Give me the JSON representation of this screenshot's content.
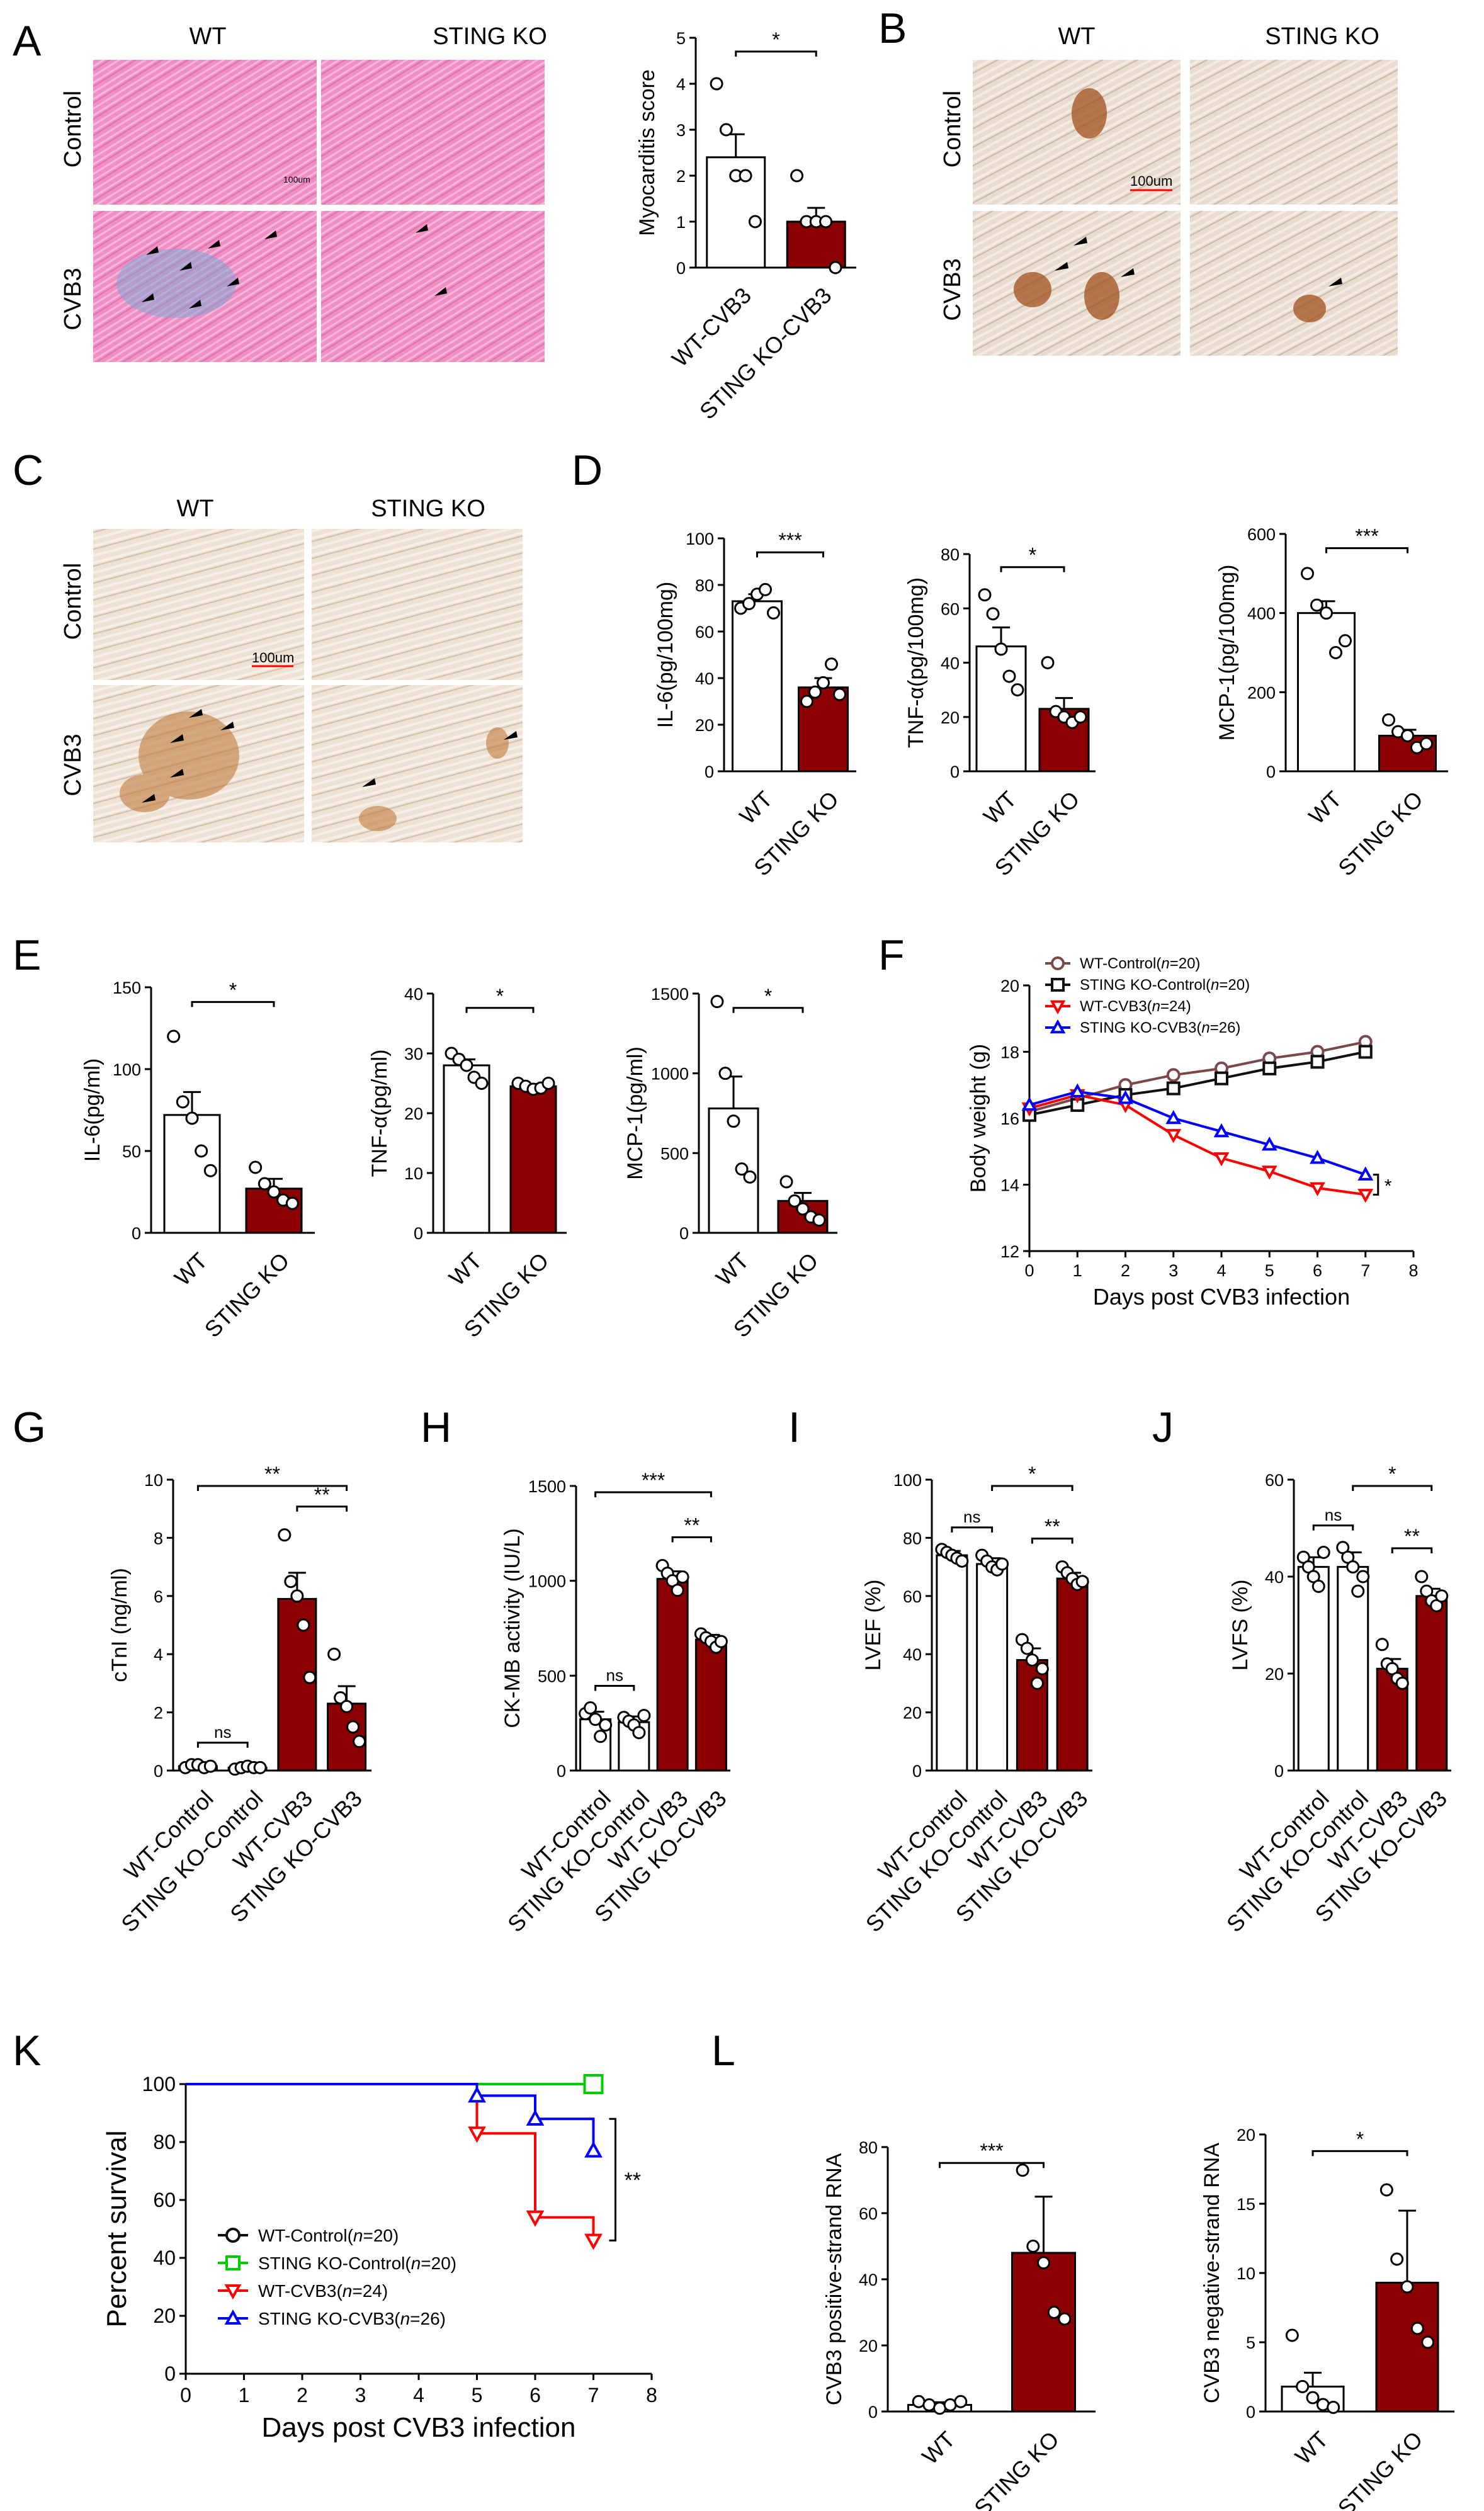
{
  "colors": {
    "ko_bar": "#8b0000",
    "wt_bar": "#ffffff",
    "wt_line": "#7a4a4a",
    "ko_ctrl_line": "#111111",
    "wt_cvb3_line": "#ff0000",
    "ko_cvb3_line": "#0000ff",
    "ko_ctrl_surv": "#00cc00",
    "scale_text": "#ff0000"
  },
  "panel_letters": [
    "A",
    "B",
    "C",
    "D",
    "E",
    "F",
    "G",
    "H",
    "I",
    "J",
    "K",
    "L"
  ],
  "micrographs": {
    "col_wt": "WT",
    "col_ko": "STING KO",
    "row_control": "Control",
    "row_cvb3": "CVB3",
    "scale_bar_label": "100um",
    "scale_bar_label_a": "100um"
  },
  "chart_data": [
    {
      "id": "A",
      "type": "bar",
      "ylabel": "Myocarditis score",
      "categories": [
        "WT-CVB3",
        "STING KO-CVB3"
      ],
      "values": [
        2.4,
        1.0
      ],
      "errors": [
        0.5,
        0.3
      ],
      "points": [
        [
          4,
          3,
          2,
          2,
          1
        ],
        [
          2,
          1,
          1,
          1,
          0
        ]
      ],
      "ylim": [
        0,
        5
      ],
      "yticks": [
        0,
        1,
        2,
        3,
        4,
        5
      ],
      "sig": [
        {
          "a": 0,
          "b": 1,
          "label": "*"
        }
      ]
    },
    {
      "id": "D1",
      "type": "bar",
      "ylabel": "IL-6(pg/100mg)",
      "categories": [
        "WT",
        "STING KO"
      ],
      "values": [
        73,
        36
      ],
      "errors": [
        3,
        4
      ],
      "points": [
        [
          70,
          72,
          76,
          78,
          68
        ],
        [
          30,
          34,
          38,
          46,
          33
        ]
      ],
      "ylim": [
        0,
        100
      ],
      "yticks": [
        0,
        20,
        40,
        60,
        80,
        100
      ],
      "sig": [
        {
          "a": 0,
          "b": 1,
          "label": "***"
        }
      ]
    },
    {
      "id": "D2",
      "type": "bar",
      "ylabel": "TNF-α(pg/100mg)",
      "categories": [
        "WT",
        "STING KO"
      ],
      "values": [
        46,
        23
      ],
      "errors": [
        7,
        4
      ],
      "points": [
        [
          65,
          58,
          45,
          35,
          30
        ],
        [
          40,
          22,
          20,
          18,
          20
        ]
      ],
      "ylim": [
        0,
        80
      ],
      "yticks": [
        0,
        20,
        40,
        60,
        80
      ],
      "sig": [
        {
          "a": 0,
          "b": 1,
          "label": "*"
        }
      ]
    },
    {
      "id": "D3",
      "type": "bar",
      "ylabel": "MCP-1(pg/100mg)",
      "categories": [
        "WT",
        "STING KO"
      ],
      "values": [
        400,
        90
      ],
      "errors": [
        30,
        15
      ],
      "points": [
        [
          500,
          420,
          400,
          300,
          330
        ],
        [
          130,
          100,
          90,
          60,
          70
        ]
      ],
      "ylim": [
        0,
        600
      ],
      "yticks": [
        0,
        200,
        400,
        600
      ],
      "sig": [
        {
          "a": 0,
          "b": 1,
          "label": "***"
        }
      ]
    },
    {
      "id": "E1",
      "type": "bar",
      "ylabel": "IL-6(pg/ml)",
      "categories": [
        "WT",
        "STING KO"
      ],
      "values": [
        72,
        27
      ],
      "errors": [
        14,
        6
      ],
      "points": [
        [
          120,
          80,
          70,
          50,
          38
        ],
        [
          40,
          30,
          25,
          20,
          18
        ]
      ],
      "ylim": [
        0,
        150
      ],
      "yticks": [
        0,
        50,
        100,
        150
      ],
      "sig": [
        {
          "a": 0,
          "b": 1,
          "label": "*"
        }
      ]
    },
    {
      "id": "E2",
      "type": "bar",
      "ylabel": "TNF-α(pg/ml)",
      "categories": [
        "WT",
        "STING KO"
      ],
      "values": [
        28,
        24.5
      ],
      "errors": [
        1,
        0.4
      ],
      "points": [
        [
          30,
          29,
          28,
          26,
          25
        ],
        [
          25,
          24.5,
          24,
          24.2,
          25
        ]
      ],
      "ylim": [
        0,
        40
      ],
      "yticks": [
        0,
        10,
        20,
        30,
        40
      ],
      "sig": [
        {
          "a": 0,
          "b": 1,
          "label": "*"
        }
      ]
    },
    {
      "id": "E3",
      "type": "bar",
      "ylabel": "MCP-1(pg/ml)",
      "categories": [
        "WT",
        "STING KO"
      ],
      "values": [
        780,
        200
      ],
      "errors": [
        200,
        50
      ],
      "points": [
        [
          1450,
          1000,
          700,
          400,
          350
        ],
        [
          320,
          200,
          150,
          100,
          80
        ]
      ],
      "ylim": [
        0,
        1500
      ],
      "yticks": [
        0,
        500,
        1000,
        1500
      ],
      "sig": [
        {
          "a": 0,
          "b": 1,
          "label": "*"
        }
      ]
    },
    {
      "id": "F",
      "type": "line",
      "ylabel": "Body weight (g)",
      "xlabel": "Days post CVB3 infection",
      "xlim": [
        0,
        8
      ],
      "ylim": [
        12,
        20
      ],
      "xticks": [
        0,
        1,
        2,
        3,
        4,
        5,
        6,
        7,
        8
      ],
      "yticks": [
        12,
        14,
        16,
        18,
        20
      ],
      "annotation": "*",
      "series": [
        {
          "name": "WT-Control(",
          "n": "n",
          "count": "=20)",
          "color": "#7a4a4a",
          "marker": "circle",
          "x": [
            0,
            1,
            2,
            3,
            4,
            5,
            6,
            7
          ],
          "y": [
            16.2,
            16.6,
            17.0,
            17.3,
            17.5,
            17.8,
            18.0,
            18.3
          ]
        },
        {
          "name": "STING KO-Control(",
          "n": "n",
          "count": "=20)",
          "color": "#111111",
          "marker": "square",
          "x": [
            0,
            1,
            2,
            3,
            4,
            5,
            6,
            7
          ],
          "y": [
            16.1,
            16.4,
            16.7,
            16.9,
            17.2,
            17.5,
            17.7,
            18.0
          ]
        },
        {
          "name": "WT-CVB3(",
          "n": "n",
          "count": "=24)",
          "color": "#ff0000",
          "marker": "tri-down",
          "x": [
            0,
            1,
            2,
            3,
            4,
            5,
            6,
            7
          ],
          "y": [
            16.3,
            16.7,
            16.4,
            15.5,
            14.8,
            14.4,
            13.9,
            13.7
          ]
        },
        {
          "name": "STING KO-CVB3(",
          "n": "n",
          "count": "=26)",
          "color": "#0000ff",
          "marker": "tri-up",
          "x": [
            0,
            1,
            2,
            3,
            4,
            5,
            6,
            7
          ],
          "y": [
            16.4,
            16.8,
            16.6,
            16.0,
            15.6,
            15.2,
            14.8,
            14.3
          ]
        }
      ]
    },
    {
      "id": "G",
      "type": "bar",
      "ylabel": "cTnI (ng/ml)",
      "categories": [
        "WT-Control",
        "STING KO-Control",
        "WT-CVB3",
        "STING KO-CVB3"
      ],
      "values": [
        0.15,
        0.1,
        5.9,
        2.3
      ],
      "errors": [
        0.05,
        0.05,
        0.9,
        0.6
      ],
      "points": [
        [
          0.1,
          0.2,
          0.2,
          0.1,
          0.15
        ],
        [
          0.05,
          0.1,
          0.15,
          0.1,
          0.1
        ],
        [
          8.1,
          6.5,
          6.0,
          5.0,
          3.2
        ],
        [
          4.0,
          2.5,
          2.2,
          1.5,
          1.0
        ]
      ],
      "ylim": [
        0,
        10
      ],
      "yticks": [
        0,
        2,
        4,
        6,
        8,
        10
      ],
      "ko_from": 2,
      "sig": [
        {
          "a": 0,
          "b": 1,
          "label": "ns",
          "level": 1
        },
        {
          "a": 2,
          "b": 3,
          "label": "**",
          "level": 2
        },
        {
          "a": 0,
          "b": 3,
          "label": "**",
          "level": 3
        }
      ]
    },
    {
      "id": "H",
      "type": "bar",
      "ylabel": "CK-MB activity (IU/L)",
      "categories": [
        "WT-Control",
        "STING KO-Control",
        "WT-CVB3",
        "STING KO-CVB3"
      ],
      "values": [
        270,
        255,
        1010,
        690
      ],
      "errors": [
        40,
        30,
        40,
        25
      ],
      "points": [
        [
          300,
          330,
          270,
          180,
          240
        ],
        [
          280,
          260,
          240,
          200,
          290
        ],
        [
          1080,
          1040,
          1000,
          950,
          1020
        ],
        [
          720,
          700,
          680,
          650,
          680
        ]
      ],
      "ylim": [
        0,
        1500
      ],
      "yticks": [
        0,
        500,
        1000,
        1500
      ],
      "ko_from": 2,
      "sig": [
        {
          "a": 0,
          "b": 1,
          "label": "ns",
          "level": 1
        },
        {
          "a": 2,
          "b": 3,
          "label": "**",
          "level": 2
        },
        {
          "a": 0,
          "b": 3,
          "label": "***",
          "level": 3
        }
      ]
    },
    {
      "id": "I",
      "type": "bar",
      "ylabel": "LVEF (%)",
      "categories": [
        "WT-Control",
        "STING KO-Control",
        "WT-CVB3",
        "STING KO-CVB3"
      ],
      "values": [
        74,
        71,
        38,
        66
      ],
      "errors": [
        1.5,
        2,
        4,
        2
      ],
      "points": [
        [
          76,
          75,
          74,
          73,
          72
        ],
        [
          74,
          72,
          70,
          69,
          71
        ],
        [
          45,
          42,
          38,
          30,
          35
        ],
        [
          70,
          68,
          66,
          64,
          65
        ]
      ],
      "ylim": [
        0,
        100
      ],
      "yticks": [
        0,
        20,
        40,
        60,
        80,
        100
      ],
      "ko_from": 2,
      "sig": [
        {
          "a": 0,
          "b": 1,
          "label": "ns",
          "level": 1
        },
        {
          "a": 2,
          "b": 3,
          "label": "**",
          "level": 2
        },
        {
          "a": 1,
          "b": 3,
          "label": "*",
          "level": 3
        }
      ]
    },
    {
      "id": "J",
      "type": "bar",
      "ylabel": "LVFS (%)",
      "categories": [
        "WT-Control",
        "STING KO-Control",
        "WT-CVB3",
        "STING KO-CVB3"
      ],
      "values": [
        42,
        42,
        21,
        36
      ],
      "errors": [
        2,
        3,
        2,
        1.5
      ],
      "points": [
        [
          44,
          42,
          40,
          38,
          45
        ],
        [
          46,
          44,
          42,
          37,
          40
        ],
        [
          26,
          22,
          21,
          19,
          18
        ],
        [
          40,
          37,
          35,
          34,
          36
        ]
      ],
      "ylim": [
        0,
        60
      ],
      "yticks": [
        0,
        20,
        40,
        60
      ],
      "ko_from": 2,
      "sig": [
        {
          "a": 0,
          "b": 1,
          "label": "ns",
          "level": 1
        },
        {
          "a": 2,
          "b": 3,
          "label": "**",
          "level": 2
        },
        {
          "a": 1,
          "b": 3,
          "label": "*",
          "level": 3
        }
      ]
    },
    {
      "id": "K",
      "type": "survival",
      "ylabel": "Percent survival",
      "xlabel": "Days post CVB3 infection",
      "xlim": [
        0,
        8
      ],
      "ylim": [
        0,
        100
      ],
      "xticks": [
        0,
        1,
        2,
        3,
        4,
        5,
        6,
        7,
        8
      ],
      "yticks": [
        0,
        20,
        40,
        60,
        80,
        100
      ],
      "annotation": "**",
      "series": [
        {
          "name": "WT-Control(",
          "n": "n",
          "count": "=20)",
          "color": "#111111",
          "marker": "circle",
          "steps": [
            [
              0,
              100
            ],
            [
              7,
              100
            ]
          ],
          "marks": [
            [
              7,
              100
            ]
          ]
        },
        {
          "name": "STING KO-Control(",
          "n": "n",
          "count": "=20)",
          "color": "#00cc00",
          "marker": "square",
          "steps": [
            [
              0,
              100
            ],
            [
              7,
              100
            ]
          ],
          "marks": [
            [
              7,
              100
            ]
          ]
        },
        {
          "name": "WT-CVB3(",
          "n": "n",
          "count": "=24)",
          "color": "#ff0000",
          "marker": "tri-down",
          "steps": [
            [
              0,
              100
            ],
            [
              5,
              100
            ],
            [
              5,
              83
            ],
            [
              6,
              83
            ],
            [
              6,
              54
            ],
            [
              7,
              54
            ],
            [
              7,
              46
            ]
          ],
          "marks": [
            [
              5,
              83
            ],
            [
              6,
              54
            ],
            [
              7,
              46
            ]
          ]
        },
        {
          "name": "STING KO-CVB3(",
          "n": "n",
          "count": "=26)",
          "color": "#0000ff",
          "marker": "tri-up",
          "steps": [
            [
              0,
              100
            ],
            [
              5,
              100
            ],
            [
              5,
              96
            ],
            [
              6,
              96
            ],
            [
              6,
              88
            ],
            [
              7,
              88
            ],
            [
              7,
              77
            ]
          ],
          "marks": [
            [
              5,
              96
            ],
            [
              6,
              88
            ],
            [
              7,
              77
            ]
          ]
        }
      ]
    },
    {
      "id": "L1",
      "type": "bar",
      "ylabel": "CVB3 positive-strand RNA",
      "categories": [
        "WT",
        "STING KO"
      ],
      "values": [
        2,
        48
      ],
      "errors": [
        0.8,
        17
      ],
      "points": [
        [
          3,
          2,
          1,
          2,
          3
        ],
        [
          73,
          50,
          45,
          30,
          28
        ]
      ],
      "ylim": [
        0,
        80
      ],
      "yticks": [
        0,
        20,
        40,
        60,
        80
      ],
      "sig": [
        {
          "a": 0,
          "b": 1,
          "label": "***"
        }
      ]
    },
    {
      "id": "L2",
      "type": "bar",
      "ylabel": "CVB3 negative-strand RNA",
      "categories": [
        "WT",
        "STING KO"
      ],
      "values": [
        1.8,
        9.3
      ],
      "errors": [
        1,
        5.2
      ],
      "points": [
        [
          5.5,
          1.8,
          1.0,
          0.5,
          0.3
        ],
        [
          16,
          11,
          9,
          6,
          5
        ]
      ],
      "ylim": [
        0,
        20
      ],
      "yticks": [
        0,
        5,
        10,
        15,
        20
      ],
      "sig": [
        {
          "a": 0,
          "b": 1,
          "label": "*"
        }
      ]
    }
  ]
}
